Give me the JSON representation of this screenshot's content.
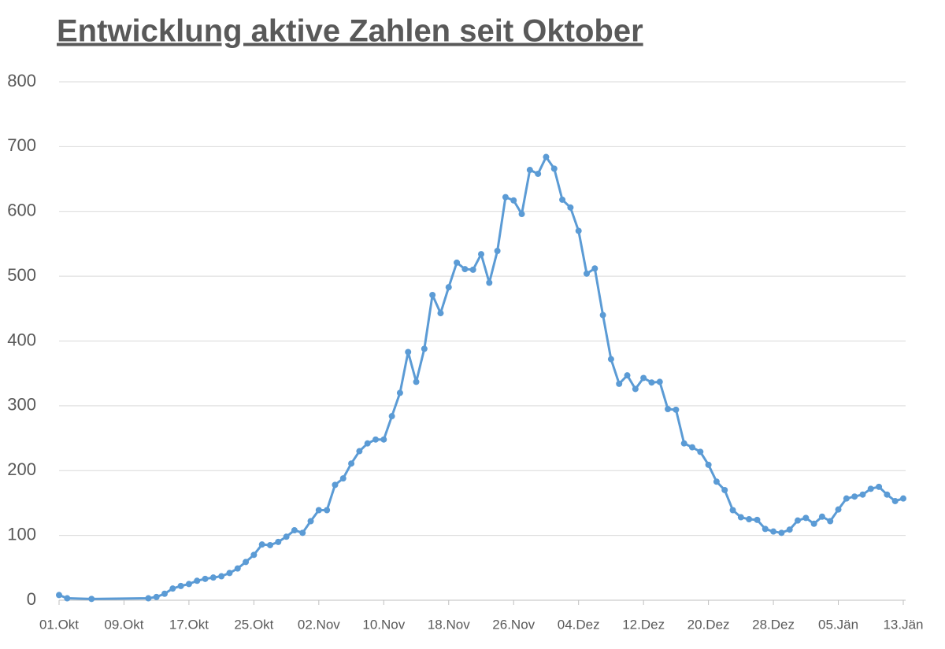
{
  "chart_data": {
    "type": "line",
    "title": "Entwicklung aktive Zahlen seit Oktober",
    "x": [
      "01.Okt",
      "02.Okt",
      "05.Okt",
      "12.Okt",
      "13.Okt",
      "14.Okt",
      "15.Okt",
      "16.Okt",
      "17.Okt",
      "18.Okt",
      "19.Okt",
      "20.Okt",
      "21.Okt",
      "22.Okt",
      "23.Okt",
      "24.Okt",
      "25.Okt",
      "26.Okt",
      "27.Okt",
      "28.Okt",
      "29.Okt",
      "30.Okt",
      "31.Okt",
      "01.Nov",
      "02.Nov",
      "03.Nov",
      "04.Nov",
      "05.Nov",
      "06.Nov",
      "07.Nov",
      "08.Nov",
      "09.Nov",
      "10.Nov",
      "11.Nov",
      "12.Nov",
      "13.Nov",
      "14.Nov",
      "15.Nov",
      "16.Nov",
      "17.Nov",
      "18.Nov",
      "19.Nov",
      "20.Nov",
      "21.Nov",
      "22.Nov",
      "23.Nov",
      "24.Nov",
      "25.Nov",
      "26.Nov",
      "27.Nov",
      "28.Nov",
      "29.Nov",
      "30.Nov",
      "01.Dez",
      "02.Dez",
      "03.Dez",
      "04.Dez",
      "05.Dez",
      "06.Dez",
      "07.Dez",
      "08.Dez",
      "09.Dez",
      "10.Dez",
      "11.Dez",
      "12.Dez",
      "13.Dez",
      "14.Dez",
      "15.Dez",
      "16.Dez",
      "17.Dez",
      "18.Dez",
      "19.Dez",
      "20.Dez",
      "21.Dez",
      "22.Dez",
      "23.Dez",
      "24.Dez",
      "25.Dez",
      "26.Dez",
      "27.Dez",
      "28.Dez",
      "29.Dez",
      "30.Dez",
      "31.Dez",
      "01.Jän",
      "02.Jän",
      "03.Jän",
      "04.Jän",
      "05.Jän",
      "06.Jän",
      "07.Jän",
      "08.Jän",
      "09.Jän",
      "10.Jän",
      "11.Jän",
      "12.Jän",
      "13.Jän"
    ],
    "series": [
      {
        "color": "#5b9bd5",
        "values": [
          8,
          3,
          2,
          3,
          5,
          10,
          18,
          22,
          25,
          30,
          33,
          35,
          37,
          42,
          49,
          59,
          70,
          86,
          85,
          90,
          98,
          108,
          104,
          122,
          139,
          139,
          178,
          188,
          211,
          230,
          242,
          248,
          248,
          284,
          320,
          383,
          337,
          388,
          471,
          443,
          483,
          521,
          511,
          510,
          534,
          490,
          539,
          622,
          617,
          596,
          664,
          658,
          684,
          666,
          618,
          606,
          570,
          504,
          512,
          440,
          372,
          334,
          347,
          326,
          343,
          336,
          337,
          295,
          294,
          242,
          236,
          229,
          209,
          183,
          170,
          139,
          128,
          125,
          124,
          110,
          106,
          104,
          109,
          123,
          127,
          118,
          129,
          122,
          140,
          157,
          160,
          163,
          172,
          175,
          163,
          153,
          157
        ]
      }
    ],
    "xticks": [
      "01.Okt",
      "09.Okt",
      "17.Okt",
      "25.Okt",
      "02.Nov",
      "10.Nov",
      "18.Nov",
      "26.Nov",
      "04.Dez",
      "12.Dez",
      "20.Dez",
      "28.Dez",
      "05.Jän",
      "13.Jän"
    ],
    "ylim": [
      0,
      800
    ],
    "yticks": [
      0,
      100,
      200,
      300,
      400,
      500,
      600,
      700,
      800
    ],
    "grid": true
  }
}
